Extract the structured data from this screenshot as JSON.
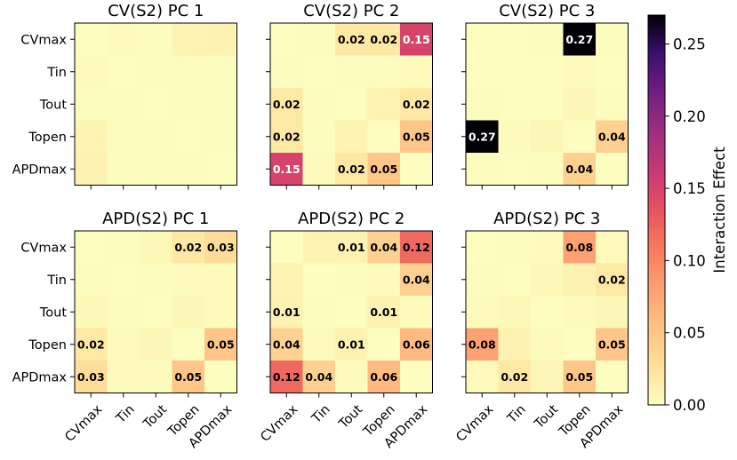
{
  "chart_data": {
    "type": "heatmap",
    "row_labels": [
      "CVmax",
      "Tin",
      "Tout",
      "Topen",
      "APDmax"
    ],
    "col_labels": [
      "CVmax",
      "Tin",
      "Tout",
      "Topen",
      "APDmax"
    ],
    "colormap": "magma_r",
    "vmin": 0.0,
    "vmax": 0.27,
    "colorbar": {
      "label": "Interaction Effect",
      "ticks": [
        0.0,
        0.05,
        0.1,
        0.15,
        0.2,
        0.25
      ],
      "tick_labels": [
        "0.00",
        "0.05",
        "0.10",
        "0.15",
        "0.20",
        "0.25"
      ]
    },
    "panels": [
      {
        "title": "CV(S2) PC 1",
        "values": [
          [
            0.0,
            0.002,
            0.001,
            0.008,
            0.01
          ],
          [
            0.002,
            0.0,
            0.001,
            0.001,
            0.001
          ],
          [
            0.001,
            0.001,
            0.0,
            0.001,
            0.001
          ],
          [
            0.008,
            0.001,
            0.001,
            0.0,
            0.001
          ],
          [
            0.01,
            0.001,
            0.001,
            0.001,
            0.0
          ]
        ],
        "labels": [
          [
            "",
            "",
            "",
            "",
            ""
          ],
          [
            "",
            "",
            "",
            "",
            ""
          ],
          [
            "",
            "",
            "",
            "",
            ""
          ],
          [
            "",
            "",
            "",
            "",
            ""
          ],
          [
            "",
            "",
            "",
            "",
            ""
          ]
        ]
      },
      {
        "title": "CV(S2) PC 2",
        "values": [
          [
            0.0,
            0.001,
            0.02,
            0.02,
            0.15
          ],
          [
            0.001,
            0.0,
            0.001,
            0.001,
            0.003
          ],
          [
            0.02,
            0.001,
            0.0,
            0.008,
            0.02
          ],
          [
            0.02,
            0.001,
            0.008,
            0.0,
            0.05
          ],
          [
            0.15,
            0.003,
            0.02,
            0.05,
            0.0
          ]
        ],
        "labels": [
          [
            "",
            "",
            "0.02",
            "0.02",
            "0.15"
          ],
          [
            "",
            "",
            "",
            "",
            ""
          ],
          [
            "0.02",
            "",
            "",
            "",
            "0.02"
          ],
          [
            "0.02",
            "",
            "",
            "",
            "0.05"
          ],
          [
            "0.15",
            "",
            "0.02",
            "0.05",
            ""
          ]
        ]
      },
      {
        "title": "CV(S2) PC 3",
        "values": [
          [
            0.0,
            0.0,
            0.001,
            0.27,
            0.001
          ],
          [
            0.0,
            0.0,
            0.0,
            0.002,
            0.0
          ],
          [
            0.001,
            0.0,
            0.0,
            0.006,
            0.001
          ],
          [
            0.27,
            0.002,
            0.006,
            0.0,
            0.04
          ],
          [
            0.001,
            0.0,
            0.001,
            0.04,
            0.0
          ]
        ],
        "labels": [
          [
            "",
            "",
            "",
            "0.27",
            ""
          ],
          [
            "",
            "",
            "",
            "",
            ""
          ],
          [
            "",
            "",
            "",
            "",
            ""
          ],
          [
            "0.27",
            "",
            "",
            "",
            "0.04"
          ],
          [
            "",
            "",
            "",
            "0.04",
            ""
          ]
        ]
      },
      {
        "title": "APD(S2) PC 1",
        "values": [
          [
            0.0,
            0.001,
            0.005,
            0.02,
            0.03
          ],
          [
            0.001,
            0.0,
            0.001,
            0.002,
            0.002
          ],
          [
            0.005,
            0.001,
            0.0,
            0.006,
            0.002
          ],
          [
            0.02,
            0.002,
            0.006,
            0.0,
            0.05
          ],
          [
            0.03,
            0.002,
            0.002,
            0.05,
            0.0
          ]
        ],
        "labels": [
          [
            "",
            "",
            "",
            "0.02",
            "0.03"
          ],
          [
            "",
            "",
            "",
            "",
            ""
          ],
          [
            "",
            "",
            "",
            "",
            ""
          ],
          [
            "0.02",
            "",
            "",
            "",
            "0.05"
          ],
          [
            "0.03",
            "",
            "",
            "0.05",
            ""
          ]
        ]
      },
      {
        "title": "APD(S2) PC 2",
        "values": [
          [
            0.0,
            0.008,
            0.01,
            0.04,
            0.12
          ],
          [
            0.008,
            0.0,
            0.001,
            0.003,
            0.04
          ],
          [
            0.01,
            0.001,
            0.0,
            0.01,
            0.002
          ],
          [
            0.04,
            0.003,
            0.01,
            0.0,
            0.06
          ],
          [
            0.12,
            0.04,
            0.002,
            0.06,
            0.0
          ]
        ],
        "labels": [
          [
            "",
            "",
            "0.01",
            "0.04",
            "0.12"
          ],
          [
            "",
            "",
            "",
            "",
            "0.04"
          ],
          [
            "0.01",
            "",
            "",
            "0.01",
            ""
          ],
          [
            "0.04",
            "",
            "0.01",
            "",
            "0.06"
          ],
          [
            "0.12",
            "0.04",
            "",
            "0.06",
            ""
          ]
        ]
      },
      {
        "title": "APD(S2) PC 3",
        "values": [
          [
            0.0,
            0.001,
            0.002,
            0.08,
            0.004
          ],
          [
            0.001,
            0.0,
            0.005,
            0.01,
            0.02
          ],
          [
            0.002,
            0.005,
            0.0,
            0.002,
            0.006
          ],
          [
            0.08,
            0.01,
            0.002,
            0.0,
            0.05
          ],
          [
            0.004,
            0.02,
            0.006,
            0.05,
            0.0
          ]
        ],
        "labels": [
          [
            "",
            "",
            "",
            "0.08",
            ""
          ],
          [
            "",
            "",
            "",
            "",
            "0.02"
          ],
          [
            "",
            "",
            "",
            "",
            ""
          ],
          [
            "0.08",
            "",
            "",
            "",
            "0.05"
          ],
          [
            "",
            "0.02",
            "",
            "0.05",
            ""
          ]
        ]
      }
    ]
  }
}
